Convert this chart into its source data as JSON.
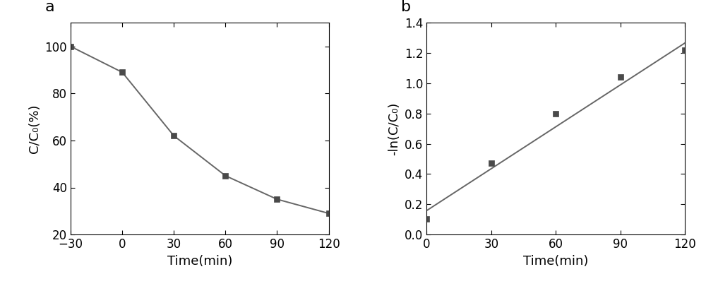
{
  "plot_a": {
    "x": [
      -30,
      0,
      30,
      60,
      90,
      120
    ],
    "y": [
      100,
      89,
      62,
      45,
      35,
      29
    ],
    "xlabel": "Time(min)",
    "ylabel": "C/C₀(%)",
    "xlim": [
      -30,
      120
    ],
    "ylim": [
      20,
      110
    ],
    "yticks": [
      20,
      40,
      60,
      80,
      100
    ],
    "xticks": [
      -30,
      0,
      30,
      60,
      90,
      120
    ],
    "label": "a"
  },
  "plot_b": {
    "x": [
      0,
      30,
      60,
      90,
      120
    ],
    "y": [
      0.105,
      0.47,
      0.8,
      1.04,
      1.22
    ],
    "fit_x": [
      -5,
      122
    ],
    "fit_y": [
      0.1125,
      1.285
    ],
    "xlabel": "Time(min)",
    "ylabel": "-ln(C/C₀)",
    "xlim": [
      0,
      120
    ],
    "ylim": [
      0.0,
      1.4
    ],
    "yticks": [
      0.0,
      0.2,
      0.4,
      0.6,
      0.8,
      1.0,
      1.2,
      1.4
    ],
    "xticks": [
      0,
      30,
      60,
      90,
      120
    ],
    "label": "b"
  },
  "marker_color": "#4a4a4a",
  "line_color": "#666666",
  "marker_size": 6,
  "line_width": 1.4,
  "label_font_size": 13,
  "tick_font_size": 12,
  "panel_label_fontsize": 16
}
